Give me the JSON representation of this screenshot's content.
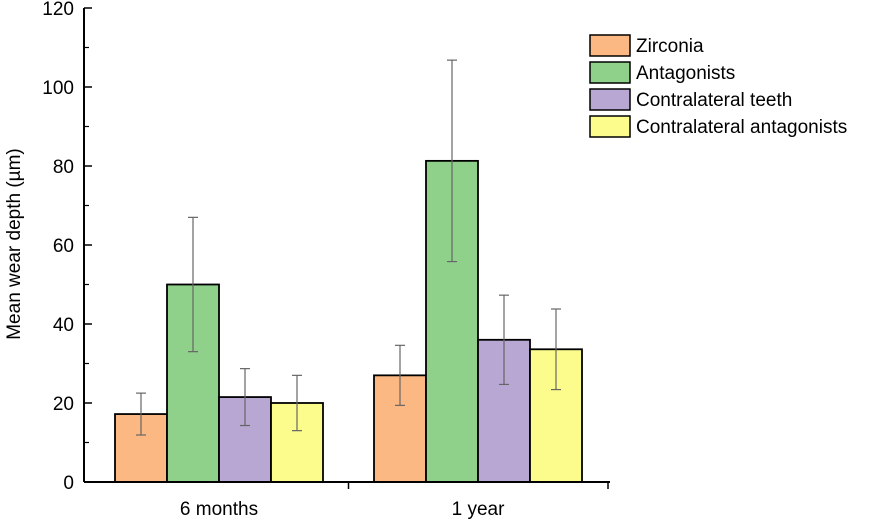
{
  "chart_data": {
    "type": "bar",
    "title": "",
    "xlabel": "",
    "ylabel": "Mean wear depth (µm)",
    "ylim": [
      0,
      120
    ],
    "yticks": [
      0,
      20,
      40,
      60,
      80,
      100,
      120
    ],
    "grid": false,
    "legend_position": "top-right",
    "categories": [
      "6 months",
      "1 year"
    ],
    "series": [
      {
        "name": "Zirconia",
        "color": "#fcb882",
        "values": [
          17.2,
          27.0
        ],
        "errors": [
          5.3,
          7.6
        ]
      },
      {
        "name": "Antagonists",
        "color": "#8fd18b",
        "values": [
          50.0,
          81.3
        ],
        "errors": [
          17.0,
          25.5
        ]
      },
      {
        "name": "Contralateral teeth",
        "color": "#b8a6d3",
        "values": [
          21.5,
          36.0
        ],
        "errors": [
          7.2,
          11.3
        ]
      },
      {
        "name": "Contralateral antagonists",
        "color": "#fcfc8c",
        "values": [
          20.0,
          33.6
        ],
        "errors": [
          7.0,
          10.2
        ]
      }
    ]
  }
}
